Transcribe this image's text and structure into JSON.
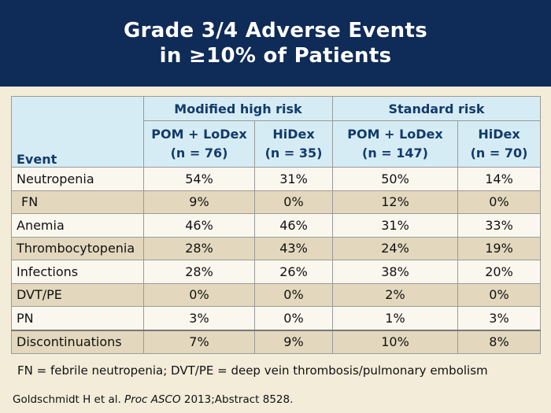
{
  "title": {
    "line1": "Grade 3/4 Adverse Events",
    "line2": "in ≥10% of Patients"
  },
  "table": {
    "event_header": "Event",
    "groups": [
      "Modified high risk",
      "Standard risk"
    ],
    "columns": [
      {
        "arm": "POM + LoDex",
        "n": "(n = 76)"
      },
      {
        "arm": "HiDex",
        "n": "(n = 35)"
      },
      {
        "arm": "POM + LoDex",
        "n": "(n = 147)"
      },
      {
        "arm": "HiDex",
        "n": "(n = 70)"
      }
    ],
    "rows": [
      {
        "event": "Neutropenia",
        "values": [
          "54%",
          "31%",
          "50%",
          "14%"
        ]
      },
      {
        "event": "FN",
        "values": [
          "9%",
          "0%",
          "12%",
          "0%"
        ]
      },
      {
        "event": "Anemia",
        "values": [
          "46%",
          "46%",
          "31%",
          "33%"
        ]
      },
      {
        "event": "Thrombocytopenia",
        "values": [
          "28%",
          "43%",
          "24%",
          "19%"
        ]
      },
      {
        "event": "Infections",
        "values": [
          "28%",
          "26%",
          "38%",
          "20%"
        ]
      },
      {
        "event": "DVT/PE",
        "values": [
          "0%",
          "0%",
          "2%",
          "0%"
        ]
      },
      {
        "event": "PN",
        "values": [
          "3%",
          "0%",
          "1%",
          "3%"
        ]
      },
      {
        "event": "Discontinuations",
        "values": [
          "7%",
          "9%",
          "10%",
          "8%"
        ]
      }
    ]
  },
  "footnote": "FN = febrile neutropenia; DVT/PE = deep vein thrombosis/pulmonary embolism",
  "citation": {
    "authors": "Goldschmidt H et al. ",
    "journal": "Proc ASCO",
    "rest": " 2013;Abstract 8528."
  },
  "colors": {
    "title_bg": "#0f2b57",
    "header_bg": "#d6ecf5",
    "header_text": "#123a6b",
    "row_light": "#faf7ee",
    "row_dark": "#e3d8bd",
    "page_bg": "#f3ecd9"
  }
}
